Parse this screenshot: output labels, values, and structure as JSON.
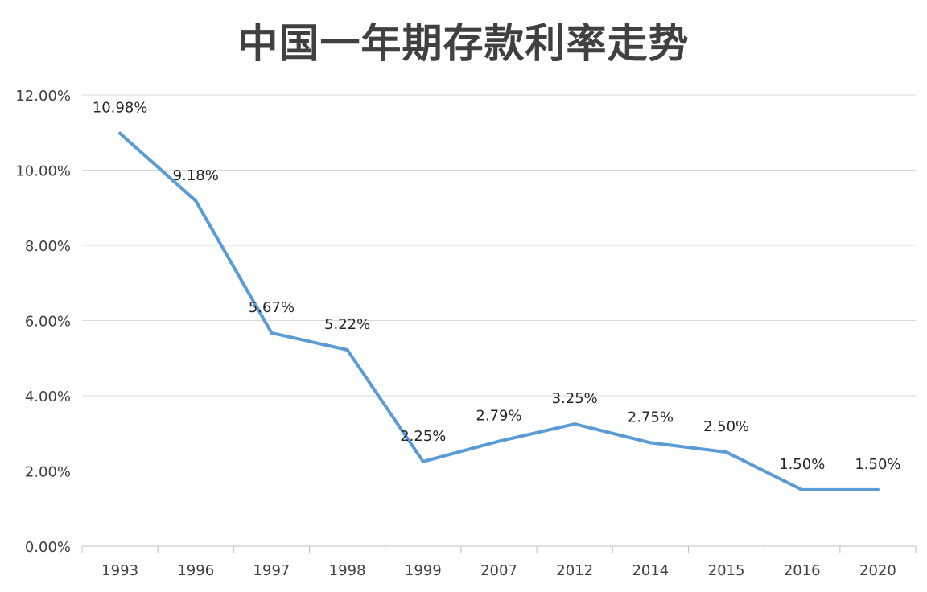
{
  "chart_data": {
    "type": "line",
    "title": "中国一年期存款利率走势",
    "xlabel": "",
    "ylabel": "",
    "categories": [
      "1993",
      "1996",
      "1997",
      "1998",
      "1999",
      "2007",
      "2012",
      "2014",
      "2015",
      "2016",
      "2020"
    ],
    "series": [
      {
        "values": [
          10.98,
          9.18,
          5.67,
          5.22,
          2.25,
          2.79,
          3.25,
          2.75,
          2.5,
          1.5,
          1.5
        ],
        "labels": [
          "10.98%",
          "9.18%",
          "5.67%",
          "5.22%",
          "2.25%",
          "2.79%",
          "3.25%",
          "2.75%",
          "2.50%",
          "1.50%",
          "1.50%"
        ],
        "color": "#5b9bd5"
      }
    ],
    "ylim": [
      0,
      12
    ],
    "yticks": [
      0,
      2,
      4,
      6,
      8,
      10,
      12
    ],
    "ytick_labels": [
      "0.00%",
      "2.00%",
      "4.00%",
      "6.00%",
      "8.00%",
      "10.00%",
      "12.00%"
    ],
    "grid": true,
    "legend": "none",
    "colors": {
      "line": "#5b9bd5",
      "grid": "#d9d9d9",
      "axis": "#bfbfbf",
      "text": "#404040"
    }
  }
}
